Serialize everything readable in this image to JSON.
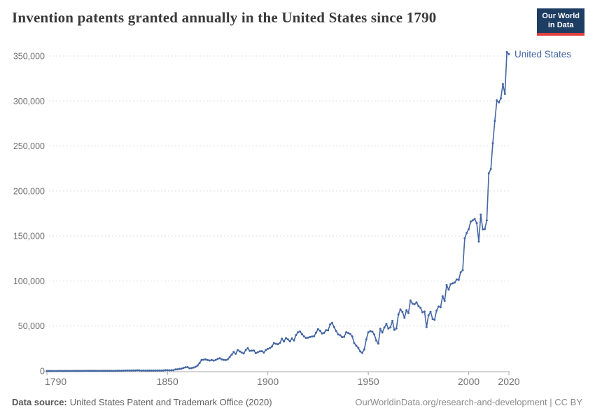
{
  "header": {
    "title": "Invention patents granted annually in the United States since 1790",
    "logo": {
      "line1": "Our World",
      "line2": "in Data"
    }
  },
  "chart_data": {
    "type": "line",
    "title": "Invention patents granted annually in the United States since 1790",
    "xlabel": "",
    "ylabel": "",
    "xlim": [
      1790,
      2020
    ],
    "ylim": [
      0,
      350000
    ],
    "x_ticks": [
      1790,
      1850,
      1900,
      1950,
      2000,
      2020
    ],
    "y_ticks": [
      0,
      50000,
      100000,
      150000,
      200000,
      250000,
      300000,
      350000
    ],
    "grid": "horizontal-dashed",
    "legend_position": "end-of-line",
    "series": [
      {
        "name": "United States",
        "color": "#4466a3",
        "x_start": 1790,
        "x_step": 1,
        "values": [
          3,
          33,
          11,
          20,
          22,
          12,
          44,
          51,
          28,
          44,
          41,
          44,
          65,
          97,
          84,
          57,
          63,
          99,
          158,
          203,
          223,
          215,
          238,
          181,
          210,
          173,
          206,
          174,
          222,
          156,
          155,
          168,
          200,
          173,
          228,
          304,
          323,
          331,
          368,
          447,
          544,
          573,
          474,
          586,
          630,
          752,
          702,
          426,
          514,
          404,
          458,
          490,
          488,
          493,
          478,
          473,
          566,
          495,
          583,
          984,
          883,
          752,
          885,
          844,
          1755,
          1881,
          2302,
          2674,
          3455,
          4160,
          4357,
          3020,
          3214,
          3773,
          4630,
          6088,
          8863,
          12277,
          12526,
          12931,
          12137,
          11659,
          12180,
          11616,
          12230,
          13291,
          14169,
          12920,
          12345,
          12165,
          12902,
          15500,
          18091,
          21162,
          19118,
          23285,
          21767,
          20403,
          19551,
          23324,
          25313,
          22312,
          22647,
          22750,
          19855,
          20856,
          21822,
          22067,
          20377,
          23278,
          24644,
          25546,
          27119,
          31029,
          30258,
          29775,
          31170,
          35859,
          32735,
          36561,
          35141,
          32856,
          36198,
          33917,
          39892,
          43118,
          43892,
          40935,
          38452,
          36797,
          37060,
          37798,
          38369,
          38616,
          42574,
          46432,
          44733,
          41717,
          42357,
          45267,
          45226,
          51756,
          53458,
          48774,
          44420,
          40618,
          39782,
          37683,
          38061,
          43073,
          42238,
          41109,
          38449,
          31054,
          28053,
          25695,
          21803,
          20139,
          23963,
          35131,
          43040,
          44326,
          43616,
          40468,
          33809,
          30432,
          46817,
          42744,
          48330,
          52408,
          47170,
          48368,
          55691,
          45679,
          47376,
          62857,
          68406,
          65652,
          59104,
          67559,
          64429,
          78317,
          74810,
          74143,
          76278,
          71994,
          70226,
          65269,
          66102,
          48854,
          61819,
          65771,
          57888,
          56860,
          67200,
          71661,
          70860,
          82952,
          77924,
          95537,
          90365,
          96511,
          97444,
          98342,
          101676,
          101419,
          109645,
          111984,
          147520,
          153485,
          157494,
          166035,
          167331,
          169023,
          164290,
          143806,
          173772,
          157282,
          157772,
          167349,
          219614,
          224505,
          253155,
          277835,
          300678,
          298407,
          303049,
          318829,
          307759,
          354430,
          351993
        ]
      }
    ]
  },
  "footer": {
    "datasource_label": "Data source:",
    "datasource_text": "United States Patent and Trademark Office (2020)",
    "credit": "OurWorldinData.org/research-and-development | CC BY"
  },
  "colors": {
    "line": "#4466a3",
    "logo_background": "#1d3d63",
    "logo_underline": "#e04040",
    "gridline": "#dcdcdc",
    "axis": "#a8a8a8",
    "tick_text": "#6e6e6e"
  }
}
